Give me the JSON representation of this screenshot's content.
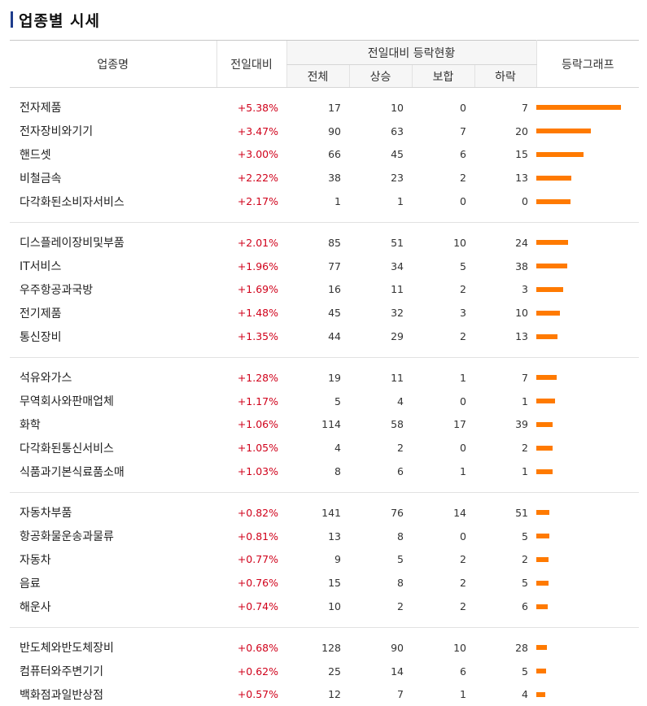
{
  "title": "업종별 시세",
  "headers": {
    "sector": "업종명",
    "change": "전일대비",
    "group": "전일대비 등락현황",
    "total": "전체",
    "up": "상승",
    "flat": "보합",
    "down": "하락",
    "graph": "등락그래프"
  },
  "colors": {
    "up": "#d0021b",
    "bar": "#ff7a00",
    "title_accent": "#1f3d8c"
  },
  "groups": [
    [
      {
        "name": "전자제품",
        "rate": "+5.38%",
        "pct": 5.38,
        "total": "17",
        "up": "10",
        "flat": "0",
        "down": "7"
      },
      {
        "name": "전자장비와기기",
        "rate": "+3.47%",
        "pct": 3.47,
        "total": "90",
        "up": "63",
        "flat": "7",
        "down": "20"
      },
      {
        "name": "핸드셋",
        "rate": "+3.00%",
        "pct": 3.0,
        "total": "66",
        "up": "45",
        "flat": "6",
        "down": "15"
      },
      {
        "name": "비철금속",
        "rate": "+2.22%",
        "pct": 2.22,
        "total": "38",
        "up": "23",
        "flat": "2",
        "down": "13"
      },
      {
        "name": "다각화된소비자서비스",
        "rate": "+2.17%",
        "pct": 2.17,
        "total": "1",
        "up": "1",
        "flat": "0",
        "down": "0"
      }
    ],
    [
      {
        "name": "디스플레이장비및부품",
        "rate": "+2.01%",
        "pct": 2.01,
        "total": "85",
        "up": "51",
        "flat": "10",
        "down": "24"
      },
      {
        "name": "IT서비스",
        "rate": "+1.96%",
        "pct": 1.96,
        "total": "77",
        "up": "34",
        "flat": "5",
        "down": "38"
      },
      {
        "name": "우주항공과국방",
        "rate": "+1.69%",
        "pct": 1.69,
        "total": "16",
        "up": "11",
        "flat": "2",
        "down": "3"
      },
      {
        "name": "전기제품",
        "rate": "+1.48%",
        "pct": 1.48,
        "total": "45",
        "up": "32",
        "flat": "3",
        "down": "10"
      },
      {
        "name": "통신장비",
        "rate": "+1.35%",
        "pct": 1.35,
        "total": "44",
        "up": "29",
        "flat": "2",
        "down": "13"
      }
    ],
    [
      {
        "name": "석유와가스",
        "rate": "+1.28%",
        "pct": 1.28,
        "total": "19",
        "up": "11",
        "flat": "1",
        "down": "7"
      },
      {
        "name": "무역회사와판매업체",
        "rate": "+1.17%",
        "pct": 1.17,
        "total": "5",
        "up": "4",
        "flat": "0",
        "down": "1"
      },
      {
        "name": "화학",
        "rate": "+1.06%",
        "pct": 1.06,
        "total": "114",
        "up": "58",
        "flat": "17",
        "down": "39"
      },
      {
        "name": "다각화된통신서비스",
        "rate": "+1.05%",
        "pct": 1.05,
        "total": "4",
        "up": "2",
        "flat": "0",
        "down": "2"
      },
      {
        "name": "식품과기본식료품소매",
        "rate": "+1.03%",
        "pct": 1.03,
        "total": "8",
        "up": "6",
        "flat": "1",
        "down": "1"
      }
    ],
    [
      {
        "name": "자동차부품",
        "rate": "+0.82%",
        "pct": 0.82,
        "total": "141",
        "up": "76",
        "flat": "14",
        "down": "51"
      },
      {
        "name": "항공화물운송과물류",
        "rate": "+0.81%",
        "pct": 0.81,
        "total": "13",
        "up": "8",
        "flat": "0",
        "down": "5"
      },
      {
        "name": "자동차",
        "rate": "+0.77%",
        "pct": 0.77,
        "total": "9",
        "up": "5",
        "flat": "2",
        "down": "2"
      },
      {
        "name": "음료",
        "rate": "+0.76%",
        "pct": 0.76,
        "total": "15",
        "up": "8",
        "flat": "2",
        "down": "5"
      },
      {
        "name": "해운사",
        "rate": "+0.74%",
        "pct": 0.74,
        "total": "10",
        "up": "2",
        "flat": "2",
        "down": "6"
      }
    ],
    [
      {
        "name": "반도체와반도체장비",
        "rate": "+0.68%",
        "pct": 0.68,
        "total": "128",
        "up": "90",
        "flat": "10",
        "down": "28"
      },
      {
        "name": "컴퓨터와주변기기",
        "rate": "+0.62%",
        "pct": 0.62,
        "total": "25",
        "up": "14",
        "flat": "6",
        "down": "5"
      },
      {
        "name": "백화점과일반상점",
        "rate": "+0.57%",
        "pct": 0.57,
        "total": "12",
        "up": "7",
        "flat": "1",
        "down": "4"
      }
    ]
  ]
}
